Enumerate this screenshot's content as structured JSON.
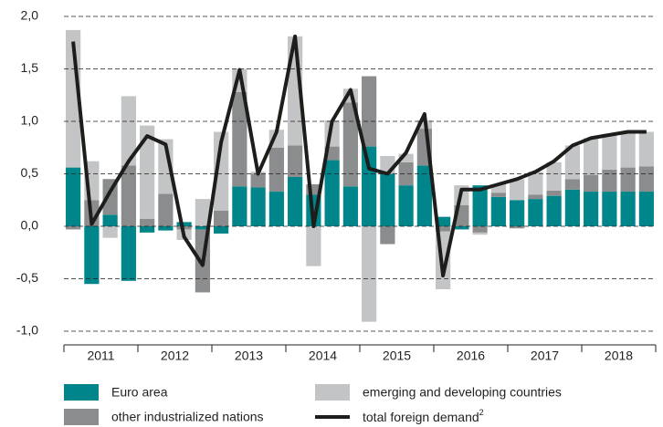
{
  "chart_data": {
    "type": "stacked-bar-line",
    "categories": [
      null,
      null,
      null,
      null,
      null,
      null,
      null,
      null,
      null,
      null,
      null,
      null,
      null,
      null,
      null,
      null,
      null,
      null,
      null,
      null,
      null,
      null,
      null,
      null,
      null,
      null,
      null,
      null,
      null,
      null,
      null,
      null
    ],
    "year_labels": [
      "2011",
      "2012",
      "2013",
      "2014",
      "2015",
      "2016",
      "2017",
      "2018"
    ],
    "series": [
      {
        "name": "Euro area",
        "color": "#00858a",
        "values": [
          0.56,
          -0.55,
          0.11,
          -0.52,
          -0.06,
          -0.04,
          0.04,
          -0.03,
          -0.07,
          0.38,
          0.37,
          0.33,
          0.47,
          0.3,
          0.63,
          0.38,
          0.76,
          0.5,
          0.39,
          0.58,
          0.09,
          -0.03,
          0.39,
          0.28,
          0.25,
          0.26,
          0.29,
          0.35,
          0.33,
          0.33,
          0.33,
          0.33
        ]
      },
      {
        "name": "other industrialized nations",
        "color": "#8a8c8e",
        "values": [
          -0.03,
          0.25,
          0.34,
          0.58,
          0.07,
          0.31,
          -0.03,
          -0.6,
          0.15,
          0.9,
          0.13,
          0.42,
          0.3,
          0.1,
          0.13,
          0.8,
          0.67,
          -0.17,
          0.22,
          0.35,
          -0.05,
          0.2,
          -0.06,
          0.04,
          -0.02,
          0.04,
          0.05,
          0.1,
          0.16,
          0.21,
          0.23,
          0.24
        ]
      },
      {
        "name": "emerging and developing countries",
        "color": "#c2c4c6",
        "values": [
          1.31,
          0.37,
          -0.11,
          0.66,
          0.89,
          0.52,
          -0.1,
          0.26,
          0.75,
          0.22,
          0.02,
          0.17,
          1.04,
          -0.38,
          0.25,
          0.13,
          -0.91,
          0.17,
          0.08,
          0.08,
          -0.55,
          0.19,
          -0.02,
          0.08,
          0.2,
          0.22,
          0.27,
          0.32,
          0.35,
          0.34,
          0.34,
          0.33
        ]
      }
    ],
    "line": {
      "name": "total foreign demand",
      "name_footnote": "2",
      "color": "#1d1d1b",
      "values": [
        1.76,
        0.02,
        0.33,
        0.62,
        0.86,
        0.78,
        -0.1,
        -0.37,
        0.8,
        1.49,
        0.5,
        0.9,
        1.81,
        0.0,
        1.0,
        1.3,
        0.55,
        0.5,
        0.7,
        1.07,
        -0.47,
        0.35,
        0.35,
        0.4,
        0.45,
        0.52,
        0.62,
        0.77,
        0.84,
        0.87,
        0.9,
        0.9
      ]
    },
    "ylim": [
      -1,
      2
    ],
    "yticks": [
      {
        "value": -1,
        "label": "-1,0"
      },
      {
        "value": -0.5,
        "label": "-0,5"
      },
      {
        "value": 0,
        "label": "0,0"
      },
      {
        "value": 0.5,
        "label": "0,5"
      },
      {
        "value": 1,
        "label": "1,0"
      },
      {
        "value": 1.5,
        "label": "1,5"
      },
      {
        "value": 2,
        "label": "2,0"
      }
    ],
    "grid": true,
    "legend": "bottom"
  }
}
